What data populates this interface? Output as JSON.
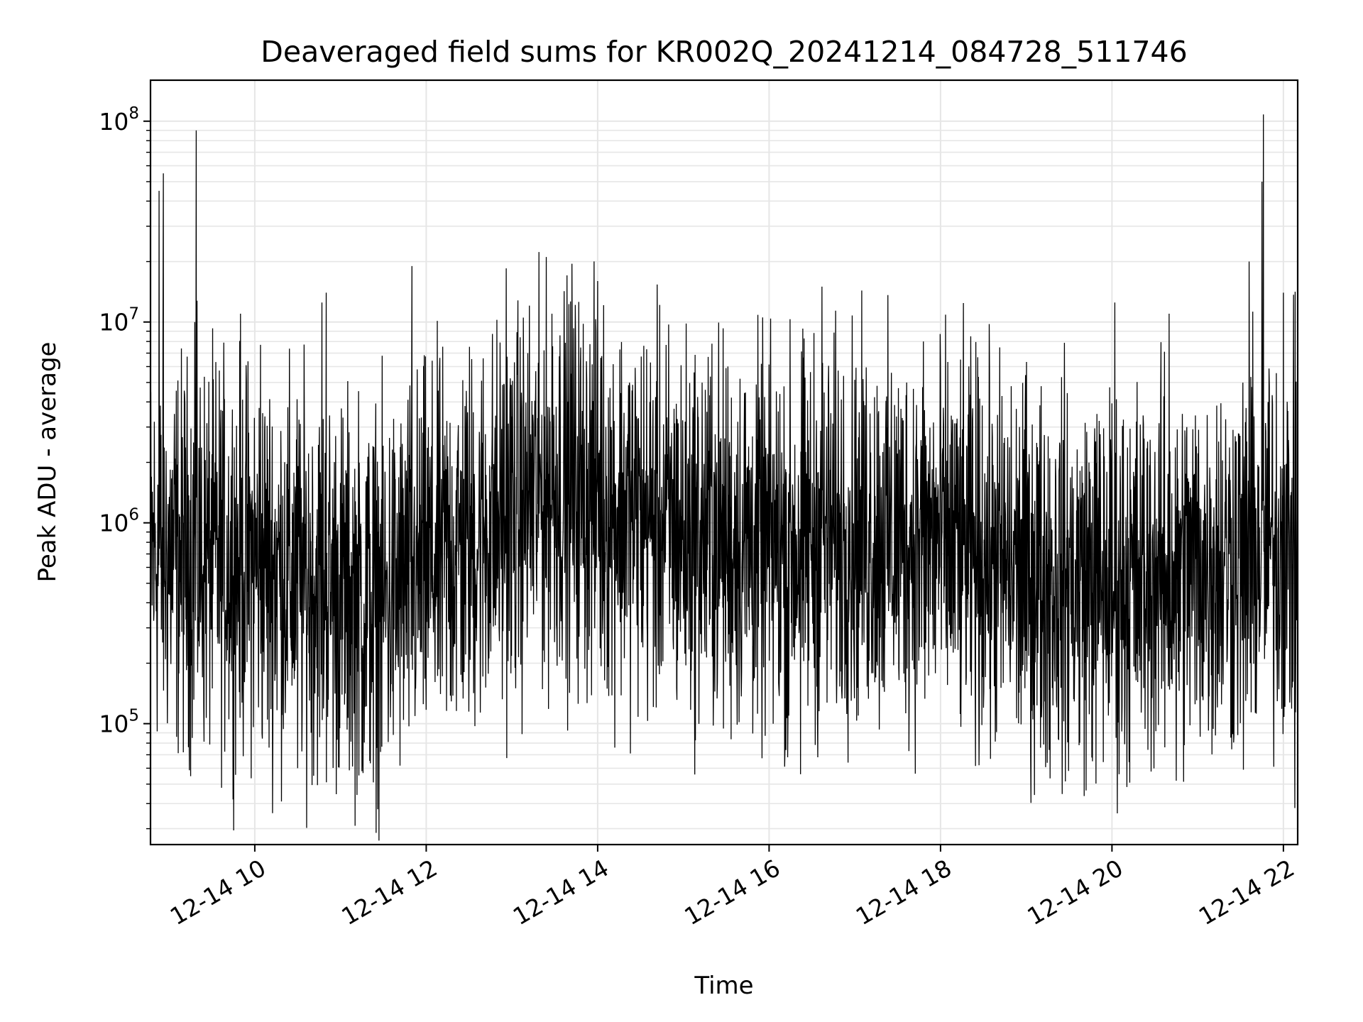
{
  "chart_data": {
    "type": "line",
    "title": "Deaveraged field sums for KR002Q_20241214_084728_511746",
    "xlabel": "Time",
    "ylabel": "Peak ADU - average",
    "y_scale": "log",
    "grid": true,
    "line_color": "#000000",
    "grid_color": "#e6e6e6",
    "x_range": [
      "2024-12-14 08:47",
      "2024-12-14 22:10"
    ],
    "ylim": [
      25000,
      160000000
    ],
    "x_ticks": [
      {
        "value": "2024-12-14 10:00",
        "label": "12-14 10"
      },
      {
        "value": "2024-12-14 12:00",
        "label": "12-14 12"
      },
      {
        "value": "2024-12-14 14:00",
        "label": "12-14 14"
      },
      {
        "value": "2024-12-14 16:00",
        "label": "12-14 16"
      },
      {
        "value": "2024-12-14 18:00",
        "label": "12-14 18"
      },
      {
        "value": "2024-12-14 20:00",
        "label": "12-14 20"
      },
      {
        "value": "2024-12-14 22:00",
        "label": "12-14 22"
      }
    ],
    "y_ticks": [
      {
        "value": 100000,
        "base": "10",
        "exp": "5"
      },
      {
        "value": 1000000,
        "base": "10",
        "exp": "6"
      },
      {
        "value": 10000000,
        "base": "10",
        "exp": "7"
      },
      {
        "value": 100000000,
        "base": "10",
        "exp": "8"
      }
    ],
    "series": [
      {
        "baseline": [
          [
            "2024-12-14 08:47",
            700000
          ],
          [
            "2024-12-14 10:00",
            650000
          ],
          [
            "2024-12-14 11:00",
            450000
          ],
          [
            "2024-12-14 11:30",
            400000
          ],
          [
            "2024-12-14 12:00",
            600000
          ],
          [
            "2024-12-14 13:00",
            1100000
          ],
          [
            "2024-12-14 13:30",
            1600000
          ],
          [
            "2024-12-14 14:00",
            1300000
          ],
          [
            "2024-12-14 15:00",
            900000
          ],
          [
            "2024-12-14 16:00",
            750000
          ],
          [
            "2024-12-14 17:00",
            900000
          ],
          [
            "2024-12-14 18:00",
            800000
          ],
          [
            "2024-12-14 19:00",
            550000
          ],
          [
            "2024-12-14 20:00",
            500000
          ],
          [
            "2024-12-14 21:00",
            600000
          ],
          [
            "2024-12-14 22:10",
            800000
          ]
        ],
        "spikes": [
          [
            "2024-12-14 08:53",
            45000000
          ],
          [
            "2024-12-14 08:56",
            55000000
          ],
          [
            "2024-12-14 09:19",
            90000000
          ],
          [
            "2024-12-14 09:18",
            10000000
          ],
          [
            "2024-12-14 09:50",
            11000000
          ],
          [
            "2024-12-14 10:04",
            7700000
          ],
          [
            "2024-12-14 10:47",
            12500000
          ],
          [
            "2024-12-14 10:50",
            14000000
          ],
          [
            "2024-12-14 11:50",
            19000000
          ],
          [
            "2024-12-14 12:56",
            18500000
          ],
          [
            "2024-12-14 13:28",
            11000000
          ],
          [
            "2024-12-14 13:42",
            19500000
          ],
          [
            "2024-12-14 14:00",
            16000000
          ],
          [
            "2024-12-14 15:20",
            7800000
          ],
          [
            "2024-12-14 16:37",
            15000000
          ],
          [
            "2024-12-14 17:48",
            8000000
          ],
          [
            "2024-12-14 20:02",
            12500000
          ],
          [
            "2024-12-14 20:40",
            11000000
          ],
          [
            "2024-12-14 21:36",
            20000000
          ],
          [
            "2024-12-14 21:46",
            108000000
          ],
          [
            "2024-12-14 21:45",
            50000000
          ],
          [
            "2024-12-14 22:00",
            14000000
          ]
        ],
        "dips": [
          [
            "2024-12-14 10:10",
            76000
          ],
          [
            "2024-12-14 10:30",
            60000
          ],
          [
            "2024-12-14 11:15",
            58000
          ],
          [
            "2024-12-14 11:23",
            51000
          ],
          [
            "2024-12-14 16:13",
            68000
          ],
          [
            "2024-12-14 16:22",
            56000
          ],
          [
            "2024-12-14 20:05",
            56000
          ],
          [
            "2024-12-14 20:45",
            52000
          ],
          [
            "2024-12-14 21:32",
            59000
          ],
          [
            "2024-12-14 22:08",
            38000
          ]
        ]
      }
    ]
  }
}
